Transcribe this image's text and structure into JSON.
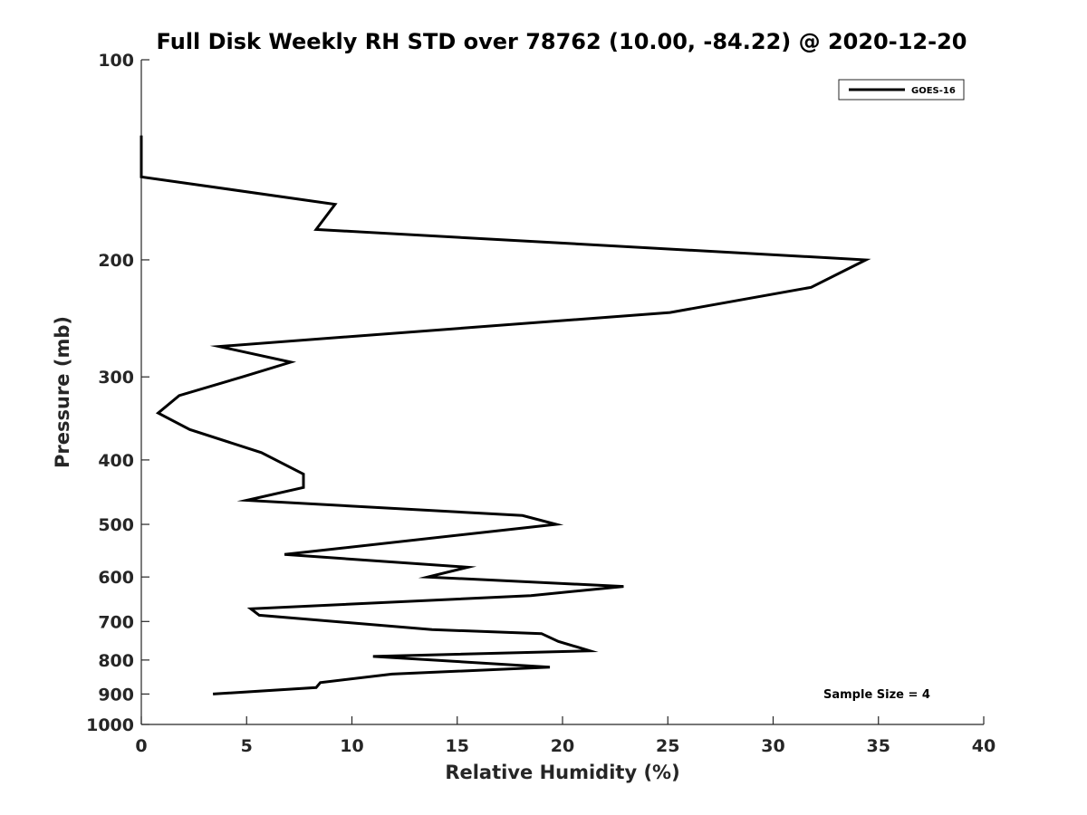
{
  "chart_data": {
    "type": "line",
    "title": "Full Disk Weekly RH STD over 78762 (10.00, -84.22) @ 2020-12-20",
    "xlabel": "Relative Humidity (%)",
    "ylabel": "Pressure (mb)",
    "xlim": [
      0,
      40
    ],
    "ylim": [
      100,
      1000
    ],
    "yscale": "log",
    "y_reversed": true,
    "xticks": [
      "0",
      "5",
      "10",
      "15",
      "20",
      "25",
      "30",
      "35",
      "40"
    ],
    "yticks": [
      "100",
      "200",
      "300",
      "400",
      "500",
      "600",
      "700",
      "800",
      "900",
      "1000"
    ],
    "grid": false,
    "legend_position": "top-right",
    "annotation": "Sample Size = 4",
    "series": [
      {
        "name": "GOES-16",
        "color": "#000000",
        "x": [
          0.0,
          0.0,
          9.2,
          8.3,
          34.4,
          31.8,
          25.1,
          3.7,
          7.1,
          4.8,
          1.8,
          0.8,
          2.3,
          5.7,
          7.7,
          7.7,
          5.0,
          18.1,
          19.7,
          6.8,
          15.5,
          13.6,
          22.9,
          18.5,
          5.2,
          5.6,
          13.8,
          19.0,
          19.8,
          21.3,
          11.0,
          19.4,
          11.9,
          8.5,
          8.3,
          3.4
        ],
        "y": [
          130,
          150,
          165,
          180,
          200,
          220,
          240,
          270,
          285,
          300,
          320,
          340,
          360,
          390,
          420,
          440,
          460,
          485,
          500,
          555,
          580,
          600,
          620,
          640,
          670,
          685,
          720,
          730,
          750,
          775,
          790,
          820,
          840,
          865,
          880,
          900
        ]
      }
    ]
  }
}
